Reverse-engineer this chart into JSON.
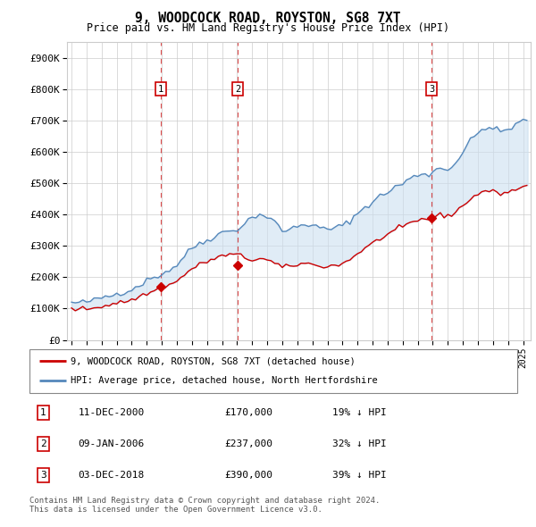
{
  "title": "9, WOODCOCK ROAD, ROYSTON, SG8 7XT",
  "subtitle": "Price paid vs. HM Land Registry's House Price Index (HPI)",
  "ylim": [
    0,
    950000
  ],
  "yticks": [
    0,
    100000,
    200000,
    300000,
    400000,
    500000,
    600000,
    700000,
    800000,
    900000
  ],
  "ytick_labels": [
    "£0",
    "£100K",
    "£200K",
    "£300K",
    "£400K",
    "£500K",
    "£600K",
    "£700K",
    "£800K",
    "£900K"
  ],
  "xlim_start": 1994.7,
  "xlim_end": 2025.5,
  "sale_dates": [
    2000.94,
    2006.03,
    2018.92
  ],
  "sale_prices": [
    170000,
    237000,
    390000
  ],
  "sale_labels": [
    "1",
    "2",
    "3"
  ],
  "legend_line1": "9, WOODCOCK ROAD, ROYSTON, SG8 7XT (detached house)",
  "legend_line2": "HPI: Average price, detached house, North Hertfordshire",
  "table_rows": [
    [
      "1",
      "11-DEC-2000",
      "£170,000",
      "19% ↓ HPI"
    ],
    [
      "2",
      "09-JAN-2006",
      "£237,000",
      "32% ↓ HPI"
    ],
    [
      "3",
      "03-DEC-2018",
      "£390,000",
      "39% ↓ HPI"
    ]
  ],
  "footer": "Contains HM Land Registry data © Crown copyright and database right 2024.\nThis data is licensed under the Open Government Licence v3.0.",
  "red_color": "#cc0000",
  "blue_color": "#5588bb",
  "fill_color": "#cce0f0",
  "grid_color": "#cccccc",
  "marker_box_color": "#cc0000",
  "hpi_points": [
    [
      1995.0,
      118000
    ],
    [
      1995.25,
      119000
    ],
    [
      1995.5,
      117000
    ],
    [
      1995.75,
      120000
    ],
    [
      1996.0,
      122000
    ],
    [
      1996.25,
      124000
    ],
    [
      1996.5,
      126000
    ],
    [
      1996.75,
      130000
    ],
    [
      1997.0,
      135000
    ],
    [
      1997.25,
      138000
    ],
    [
      1997.5,
      140000
    ],
    [
      1997.75,
      143000
    ],
    [
      1998.0,
      148000
    ],
    [
      1998.25,
      151000
    ],
    [
      1998.5,
      154000
    ],
    [
      1998.75,
      157000
    ],
    [
      1999.0,
      162000
    ],
    [
      1999.25,
      168000
    ],
    [
      1999.5,
      175000
    ],
    [
      1999.75,
      182000
    ],
    [
      2000.0,
      190000
    ],
    [
      2000.25,
      196000
    ],
    [
      2000.5,
      200000
    ],
    [
      2000.75,
      205000
    ],
    [
      2001.0,
      210000
    ],
    [
      2001.25,
      218000
    ],
    [
      2001.5,
      224000
    ],
    [
      2001.75,
      230000
    ],
    [
      2002.0,
      238000
    ],
    [
      2002.25,
      255000
    ],
    [
      2002.5,
      268000
    ],
    [
      2002.75,
      280000
    ],
    [
      2003.0,
      292000
    ],
    [
      2003.25,
      302000
    ],
    [
      2003.5,
      308000
    ],
    [
      2003.75,
      312000
    ],
    [
      2004.0,
      318000
    ],
    [
      2004.25,
      325000
    ],
    [
      2004.5,
      332000
    ],
    [
      2004.75,
      338000
    ],
    [
      2005.0,
      342000
    ],
    [
      2005.25,
      346000
    ],
    [
      2005.5,
      348000
    ],
    [
      2005.75,
      350000
    ],
    [
      2006.0,
      354000
    ],
    [
      2006.25,
      362000
    ],
    [
      2006.5,
      372000
    ],
    [
      2006.75,
      382000
    ],
    [
      2007.0,
      390000
    ],
    [
      2007.25,
      398000
    ],
    [
      2007.5,
      400000
    ],
    [
      2007.75,
      398000
    ],
    [
      2008.0,
      392000
    ],
    [
      2008.25,
      385000
    ],
    [
      2008.5,
      375000
    ],
    [
      2008.75,
      362000
    ],
    [
      2009.0,
      350000
    ],
    [
      2009.25,
      348000
    ],
    [
      2009.5,
      352000
    ],
    [
      2009.75,
      358000
    ],
    [
      2010.0,
      362000
    ],
    [
      2010.25,
      368000
    ],
    [
      2010.5,
      372000
    ],
    [
      2010.75,
      368000
    ],
    [
      2011.0,
      362000
    ],
    [
      2011.25,
      360000
    ],
    [
      2011.5,
      358000
    ],
    [
      2011.75,
      355000
    ],
    [
      2012.0,
      352000
    ],
    [
      2012.25,
      355000
    ],
    [
      2012.5,
      358000
    ],
    [
      2012.75,
      360000
    ],
    [
      2013.0,
      365000
    ],
    [
      2013.25,
      372000
    ],
    [
      2013.5,
      382000
    ],
    [
      2013.75,
      392000
    ],
    [
      2014.0,
      402000
    ],
    [
      2014.25,
      415000
    ],
    [
      2014.5,
      425000
    ],
    [
      2014.75,
      432000
    ],
    [
      2015.0,
      440000
    ],
    [
      2015.25,
      450000
    ],
    [
      2015.5,
      458000
    ],
    [
      2015.75,
      465000
    ],
    [
      2016.0,
      472000
    ],
    [
      2016.25,
      480000
    ],
    [
      2016.5,
      488000
    ],
    [
      2016.75,
      492000
    ],
    [
      2017.0,
      498000
    ],
    [
      2017.25,
      508000
    ],
    [
      2017.5,
      515000
    ],
    [
      2017.75,
      520000
    ],
    [
      2018.0,
      525000
    ],
    [
      2018.25,
      530000
    ],
    [
      2018.5,
      532000
    ],
    [
      2018.75,
      528000
    ],
    [
      2019.0,
      535000
    ],
    [
      2019.25,
      545000
    ],
    [
      2019.5,
      548000
    ],
    [
      2019.75,
      545000
    ],
    [
      2020.0,
      548000
    ],
    [
      2020.25,
      552000
    ],
    [
      2020.5,
      565000
    ],
    [
      2020.75,
      582000
    ],
    [
      2021.0,
      598000
    ],
    [
      2021.25,
      618000
    ],
    [
      2021.5,
      635000
    ],
    [
      2021.75,
      648000
    ],
    [
      2022.0,
      658000
    ],
    [
      2022.25,
      672000
    ],
    [
      2022.5,
      680000
    ],
    [
      2022.75,
      678000
    ],
    [
      2023.0,
      672000
    ],
    [
      2023.25,
      668000
    ],
    [
      2023.5,
      665000
    ],
    [
      2023.75,
      668000
    ],
    [
      2024.0,
      672000
    ],
    [
      2024.25,
      678000
    ],
    [
      2024.5,
      685000
    ],
    [
      2024.75,
      692000
    ],
    [
      2025.0,
      700000
    ],
    [
      2025.25,
      705000
    ]
  ],
  "red_points": [
    [
      1995.0,
      97000
    ],
    [
      1995.25,
      98000
    ],
    [
      1995.5,
      97000
    ],
    [
      1995.75,
      99000
    ],
    [
      1996.0,
      100000
    ],
    [
      1996.25,
      101000
    ],
    [
      1996.5,
      102000
    ],
    [
      1996.75,
      105000
    ],
    [
      1997.0,
      108000
    ],
    [
      1997.25,
      110000
    ],
    [
      1997.5,
      112000
    ],
    [
      1997.75,
      115000
    ],
    [
      1998.0,
      118000
    ],
    [
      1998.25,
      120000
    ],
    [
      1998.5,
      122000
    ],
    [
      1998.75,
      124000
    ],
    [
      1999.0,
      128000
    ],
    [
      1999.25,
      132000
    ],
    [
      1999.5,
      138000
    ],
    [
      1999.75,
      143000
    ],
    [
      2000.0,
      148000
    ],
    [
      2000.25,
      152000
    ],
    [
      2000.5,
      156000
    ],
    [
      2000.75,
      162000
    ],
    [
      2001.0,
      168000
    ],
    [
      2001.25,
      172000
    ],
    [
      2001.5,
      176000
    ],
    [
      2001.75,
      180000
    ],
    [
      2002.0,
      186000
    ],
    [
      2002.25,
      198000
    ],
    [
      2002.5,
      208000
    ],
    [
      2002.75,
      218000
    ],
    [
      2003.0,
      226000
    ],
    [
      2003.25,
      234000
    ],
    [
      2003.5,
      240000
    ],
    [
      2003.75,
      245000
    ],
    [
      2004.0,
      250000
    ],
    [
      2004.25,
      255000
    ],
    [
      2004.5,
      260000
    ],
    [
      2004.75,
      264000
    ],
    [
      2005.0,
      267000
    ],
    [
      2005.25,
      270000
    ],
    [
      2005.5,
      272000
    ],
    [
      2005.75,
      272000
    ],
    [
      2006.0,
      272000
    ],
    [
      2006.25,
      268000
    ],
    [
      2006.5,
      262000
    ],
    [
      2006.75,
      258000
    ],
    [
      2007.0,
      255000
    ],
    [
      2007.25,
      258000
    ],
    [
      2007.5,
      260000
    ],
    [
      2007.75,
      258000
    ],
    [
      2008.0,
      254000
    ],
    [
      2008.25,
      250000
    ],
    [
      2008.5,
      244000
    ],
    [
      2008.75,
      238000
    ],
    [
      2009.0,
      232000
    ],
    [
      2009.25,
      232000
    ],
    [
      2009.5,
      234000
    ],
    [
      2009.75,
      238000
    ],
    [
      2010.0,
      240000
    ],
    [
      2010.25,
      243000
    ],
    [
      2010.5,
      245000
    ],
    [
      2010.75,
      243000
    ],
    [
      2011.0,
      240000
    ],
    [
      2011.25,
      238000
    ],
    [
      2011.5,
      237000
    ],
    [
      2011.75,
      235000
    ],
    [
      2012.0,
      234000
    ],
    [
      2012.25,
      236000
    ],
    [
      2012.5,
      238000
    ],
    [
      2012.75,
      240000
    ],
    [
      2013.0,
      244000
    ],
    [
      2013.25,
      250000
    ],
    [
      2013.5,
      258000
    ],
    [
      2013.75,
      266000
    ],
    [
      2014.0,
      275000
    ],
    [
      2014.25,
      285000
    ],
    [
      2014.5,
      293000
    ],
    [
      2014.75,
      300000
    ],
    [
      2015.0,
      308000
    ],
    [
      2015.25,
      316000
    ],
    [
      2015.5,
      323000
    ],
    [
      2015.75,
      330000
    ],
    [
      2016.0,
      336000
    ],
    [
      2016.25,
      344000
    ],
    [
      2016.5,
      350000
    ],
    [
      2016.75,
      354000
    ],
    [
      2017.0,
      358000
    ],
    [
      2017.25,
      366000
    ],
    [
      2017.5,
      372000
    ],
    [
      2017.75,
      376000
    ],
    [
      2018.0,
      380000
    ],
    [
      2018.25,
      385000
    ],
    [
      2018.5,
      388000
    ],
    [
      2018.75,
      384000
    ],
    [
      2019.0,
      388000
    ],
    [
      2019.25,
      396000
    ],
    [
      2019.5,
      398000
    ],
    [
      2019.75,
      396000
    ],
    [
      2020.0,
      398000
    ],
    [
      2020.25,
      400000
    ],
    [
      2020.5,
      408000
    ],
    [
      2020.75,
      418000
    ],
    [
      2021.0,
      428000
    ],
    [
      2021.25,
      440000
    ],
    [
      2021.5,
      450000
    ],
    [
      2021.75,
      458000
    ],
    [
      2022.0,
      465000
    ],
    [
      2022.25,
      472000
    ],
    [
      2022.5,
      476000
    ],
    [
      2022.75,
      475000
    ],
    [
      2023.0,
      472000
    ],
    [
      2023.25,
      470000
    ],
    [
      2023.5,
      468000
    ],
    [
      2023.75,
      470000
    ],
    [
      2024.0,
      472000
    ],
    [
      2024.25,
      476000
    ],
    [
      2024.5,
      480000
    ],
    [
      2024.75,
      484000
    ],
    [
      2025.0,
      488000
    ],
    [
      2025.25,
      490000
    ]
  ]
}
